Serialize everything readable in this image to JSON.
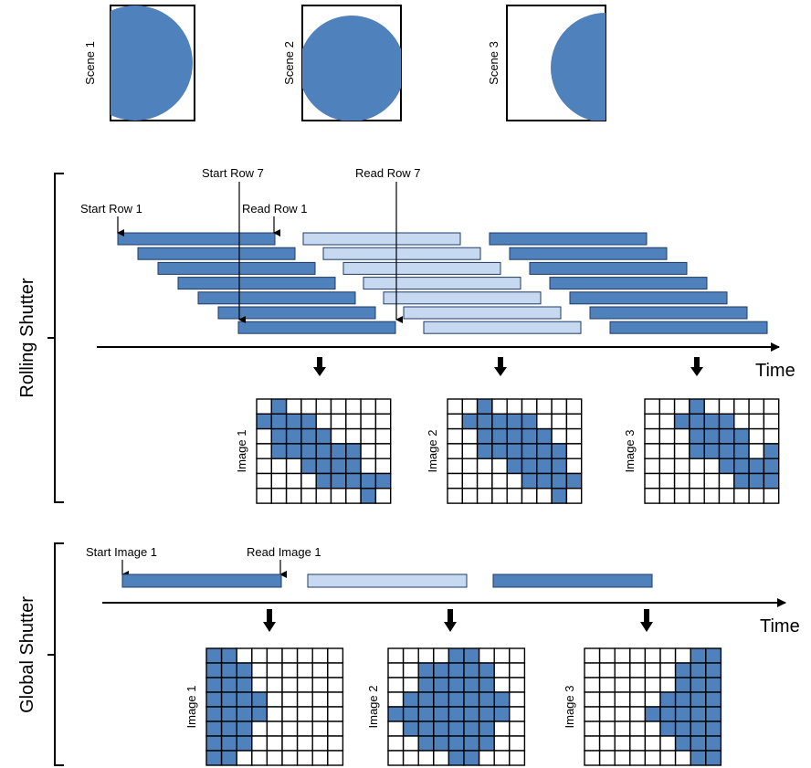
{
  "colors": {
    "dark_blue": "#4f81bd",
    "light_blue": "#c6d9f1",
    "outline": "#1f3a66",
    "grid_line": "#000000"
  },
  "scenes": [
    {
      "label": "Scene 1",
      "shape": "half-disk-left"
    },
    {
      "label": "Scene 2",
      "shape": "full-disk"
    },
    {
      "label": "Scene 3",
      "shape": "half-disk-right"
    }
  ],
  "rolling": {
    "section_label": "Rolling Shutter",
    "time_label": "Time",
    "annotations": {
      "start_row_1": "Start Row 1",
      "read_row_1": "Read Row 1",
      "start_row_7": "Start Row 7",
      "read_row_7": "Read Row 7"
    },
    "groups": [
      {
        "name": "group-1",
        "color": "dark_blue"
      },
      {
        "name": "group-2",
        "color": "light_blue"
      },
      {
        "name": "group-3",
        "color": "dark_blue"
      }
    ],
    "images": [
      {
        "label": "Image 1",
        "cols": 9,
        "rows": 7,
        "filled": [
          [
            0,
            1,
            0,
            0,
            0,
            0,
            0,
            0,
            0
          ],
          [
            1,
            1,
            1,
            1,
            0,
            0,
            0,
            0,
            0
          ],
          [
            0,
            1,
            1,
            1,
            1,
            0,
            0,
            0,
            0
          ],
          [
            0,
            1,
            1,
            1,
            1,
            1,
            1,
            0,
            0
          ],
          [
            0,
            0,
            0,
            1,
            1,
            1,
            1,
            0,
            0
          ],
          [
            0,
            0,
            0,
            0,
            1,
            1,
            1,
            1,
            1
          ],
          [
            0,
            0,
            0,
            0,
            0,
            0,
            0,
            1,
            0
          ]
        ]
      },
      {
        "label": "Image 2",
        "cols": 9,
        "rows": 7,
        "filled": [
          [
            0,
            0,
            1,
            0,
            0,
            0,
            0,
            0,
            0
          ],
          [
            0,
            1,
            1,
            1,
            1,
            1,
            0,
            0,
            0
          ],
          [
            0,
            0,
            1,
            1,
            1,
            1,
            1,
            0,
            0
          ],
          [
            0,
            0,
            1,
            1,
            1,
            1,
            1,
            1,
            0
          ],
          [
            0,
            0,
            0,
            0,
            1,
            1,
            1,
            1,
            0
          ],
          [
            0,
            0,
            0,
            0,
            0,
            1,
            1,
            1,
            1
          ],
          [
            0,
            0,
            0,
            0,
            0,
            0,
            0,
            1,
            0
          ]
        ]
      },
      {
        "label": "Image 3",
        "cols": 9,
        "rows": 7,
        "filled": [
          [
            0,
            0,
            0,
            1,
            0,
            0,
            0,
            0,
            0
          ],
          [
            0,
            0,
            1,
            1,
            1,
            1,
            0,
            0,
            0
          ],
          [
            0,
            0,
            0,
            1,
            1,
            1,
            1,
            0,
            0
          ],
          [
            0,
            0,
            0,
            1,
            1,
            1,
            1,
            0,
            1
          ],
          [
            0,
            0,
            0,
            0,
            0,
            1,
            1,
            1,
            1
          ],
          [
            0,
            0,
            0,
            0,
            0,
            0,
            1,
            1,
            1
          ],
          [
            0,
            0,
            0,
            0,
            0,
            0,
            0,
            0,
            0
          ]
        ]
      }
    ]
  },
  "global": {
    "section_label": "Global Shutter",
    "time_label": "Time",
    "annotations": {
      "start_image_1": "Start Image 1",
      "read_image_1": "Read Image 1"
    },
    "bars": [
      {
        "name": "exposure-1",
        "color": "dark_blue"
      },
      {
        "name": "exposure-2",
        "color": "light_blue"
      },
      {
        "name": "exposure-3",
        "color": "dark_blue"
      }
    ],
    "images": [
      {
        "label": "Image 1",
        "cols": 9,
        "rows": 8,
        "filled": [
          [
            1,
            1,
            0,
            0,
            0,
            0,
            0,
            0,
            0
          ],
          [
            1,
            1,
            1,
            0,
            0,
            0,
            0,
            0,
            0
          ],
          [
            1,
            1,
            1,
            0,
            0,
            0,
            0,
            0,
            0
          ],
          [
            1,
            1,
            1,
            1,
            0,
            0,
            0,
            0,
            0
          ],
          [
            1,
            1,
            1,
            1,
            0,
            0,
            0,
            0,
            0
          ],
          [
            1,
            1,
            1,
            0,
            0,
            0,
            0,
            0,
            0
          ],
          [
            1,
            1,
            1,
            0,
            0,
            0,
            0,
            0,
            0
          ],
          [
            1,
            1,
            0,
            0,
            0,
            0,
            0,
            0,
            0
          ]
        ]
      },
      {
        "label": "Image 2",
        "cols": 9,
        "rows": 8,
        "filled": [
          [
            0,
            0,
            0,
            0,
            1,
            1,
            0,
            0,
            0
          ],
          [
            0,
            0,
            1,
            1,
            1,
            1,
            1,
            0,
            0
          ],
          [
            0,
            0,
            1,
            1,
            1,
            1,
            1,
            0,
            0
          ],
          [
            0,
            1,
            1,
            1,
            1,
            1,
            1,
            1,
            0
          ],
          [
            1,
            1,
            1,
            1,
            1,
            1,
            1,
            1,
            0
          ],
          [
            0,
            1,
            1,
            1,
            1,
            1,
            1,
            0,
            0
          ],
          [
            0,
            0,
            1,
            1,
            1,
            1,
            1,
            0,
            0
          ],
          [
            0,
            0,
            0,
            0,
            1,
            1,
            0,
            0,
            0
          ]
        ]
      },
      {
        "label": "Image 3",
        "cols": 9,
        "rows": 8,
        "filled": [
          [
            0,
            0,
            0,
            0,
            0,
            0,
            0,
            1,
            1
          ],
          [
            0,
            0,
            0,
            0,
            0,
            0,
            1,
            1,
            1
          ],
          [
            0,
            0,
            0,
            0,
            0,
            0,
            1,
            1,
            1
          ],
          [
            0,
            0,
            0,
            0,
            0,
            1,
            1,
            1,
            1
          ],
          [
            0,
            0,
            0,
            0,
            1,
            1,
            1,
            1,
            1
          ],
          [
            0,
            0,
            0,
            0,
            0,
            1,
            1,
            1,
            1
          ],
          [
            0,
            0,
            0,
            0,
            0,
            0,
            1,
            1,
            1
          ],
          [
            0,
            0,
            0,
            0,
            0,
            0,
            0,
            1,
            1
          ]
        ]
      }
    ]
  }
}
